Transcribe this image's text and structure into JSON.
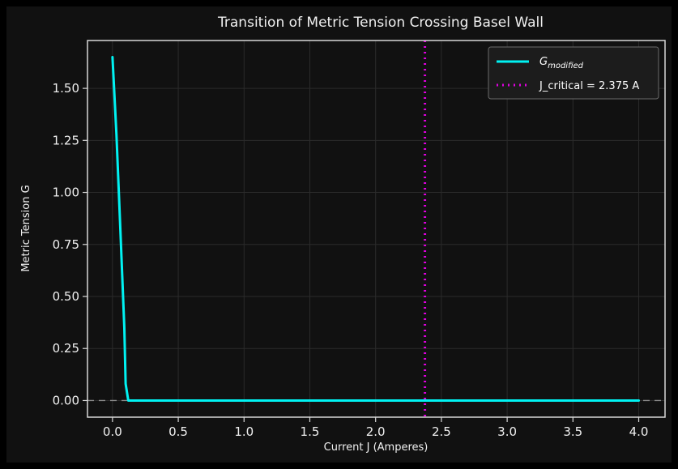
{
  "colors": {
    "background": "#111111",
    "grid": "#2b2b2b",
    "axes_frame": "#d8d8d8",
    "text": "#f0f0f0",
    "line": "#00f2f2",
    "critical_line": "#e000e0",
    "zero_line": "#8a8a8a",
    "legend_bg": "#1c1c1c",
    "legend_border": "#6a6a6a"
  },
  "chart_data": {
    "type": "line",
    "title": "Transition of Metric Tension Crossing Basel Wall",
    "xlabel": "Current J (Amperes)",
    "ylabel": "Metric Tension G",
    "xlim": [
      -0.19,
      4.2
    ],
    "ylim": [
      -0.08,
      1.73
    ],
    "xticks": [
      0.0,
      0.5,
      1.0,
      1.5,
      2.0,
      2.5,
      3.0,
      3.5,
      4.0
    ],
    "xtick_labels": [
      "0.0",
      "0.5",
      "1.0",
      "1.5",
      "2.0",
      "2.5",
      "3.0",
      "3.5",
      "4.0"
    ],
    "yticks": [
      0.0,
      0.25,
      0.5,
      0.75,
      1.0,
      1.25,
      1.5
    ],
    "ytick_labels": [
      "0.00",
      "0.25",
      "0.50",
      "0.75",
      "1.00",
      "1.25",
      "1.50"
    ],
    "grid": true,
    "legend_position": "top-right",
    "series": [
      {
        "name_main": "G",
        "name_sub": "modified",
        "style": "solid",
        "color": "#00f2f2",
        "x": [
          0.0,
          0.03,
          0.06,
          0.09,
          0.1,
          0.12,
          0.14,
          0.5,
          1.0,
          1.5,
          2.0,
          2.5,
          3.0,
          3.5,
          4.0
        ],
        "y": [
          1.65,
          1.28,
          0.82,
          0.35,
          0.08,
          0.0,
          0.0,
          0.0,
          0.0,
          0.0,
          0.0,
          0.0,
          0.0,
          0.0,
          0.0
        ]
      }
    ],
    "reference_lines": [
      {
        "label": "J_critical = 2.375 A",
        "orientation": "vertical",
        "x": 2.375,
        "style": "dotted",
        "color": "#e000e0"
      },
      {
        "orientation": "horizontal",
        "y": 0.0,
        "style": "dashed",
        "color": "#8a8a8a"
      }
    ]
  }
}
